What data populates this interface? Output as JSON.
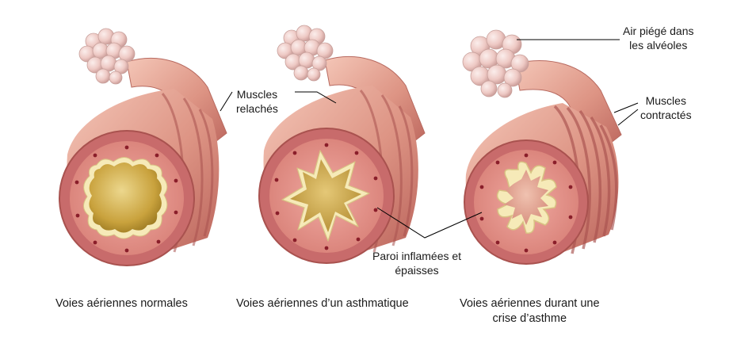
{
  "colors": {
    "tissue": "#d98e80",
    "tissue_light": "#f3c1b2",
    "tissue_dark": "#a9524f",
    "mucosa": "#e69b92",
    "wall_ring": "#b9575a",
    "lumen": "#c8a33f",
    "lumen_light": "#e8d48a",
    "membrane": "#f6eab8",
    "dot": "#8a1e2a",
    "alveoli": "#f0d0cc",
    "leader": "#000000"
  },
  "labels": {
    "trapped_air": {
      "line1": "Air piégé dans",
      "line2": "les alvéoles"
    },
    "relaxed_muscles": {
      "line1": "Muscles",
      "line2": "relachés"
    },
    "contracted_muscles": {
      "line1": "Muscles",
      "line2": "contractés"
    },
    "inflamed_wall": {
      "line1": "Paroi inflamées et",
      "line2": "épaisses"
    }
  },
  "captions": {
    "normal": {
      "line1": "Voies aériennes normales"
    },
    "asthmatic": {
      "line1": "Voies aériennes d’un asthmatique"
    },
    "attack": {
      "line1": "Voies aériennes durant une",
      "line2": "crise d’asthme"
    }
  }
}
